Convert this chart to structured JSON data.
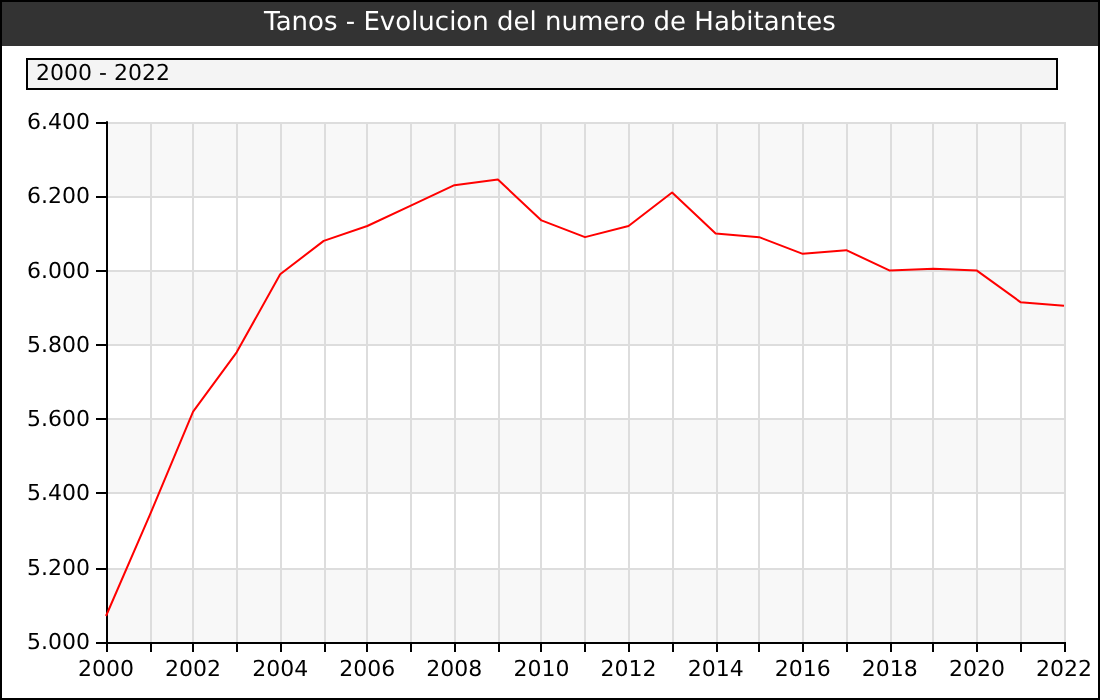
{
  "chart_data": {
    "type": "line",
    "title": "Tanos - Evolucion del numero de Habitantes",
    "subtitle": "2000 - 2022",
    "x": [
      2000,
      2001,
      2002,
      2003,
      2004,
      2005,
      2006,
      2007,
      2008,
      2009,
      2010,
      2011,
      2012,
      2013,
      2014,
      2015,
      2016,
      2017,
      2018,
      2019,
      2020,
      2021,
      2022
    ],
    "series": [
      {
        "color": "#ff0000",
        "values": [
          5070,
          5340,
          5620,
          5780,
          5990,
          6080,
          6120,
          6175,
          6230,
          6245,
          6135,
          6090,
          6120,
          6210,
          6100,
          6090,
          6045,
          6055,
          6000,
          6005,
          6000,
          5915,
          5905
        ]
      }
    ],
    "xlim": [
      2000,
      2022
    ],
    "xticks": [
      2000,
      {
        "value": 2001,
        "label": null
      },
      2002,
      {
        "value": 2003,
        "label": null
      },
      2004,
      {
        "value": 2005,
        "label": null
      },
      2006,
      {
        "value": 2007,
        "label": null
      },
      2008,
      {
        "value": 2009,
        "label": null
      },
      2010,
      {
        "value": 2011,
        "label": null
      },
      2012,
      {
        "value": 2013,
        "label": null
      },
      2014,
      {
        "value": 2015,
        "label": null
      },
      2016,
      {
        "value": 2017,
        "label": null
      },
      2018,
      {
        "value": 2019,
        "label": null
      },
      2020,
      {
        "value": 2021,
        "label": null
      },
      2022
    ],
    "ylim": [
      5000,
      6400
    ],
    "yticks": [
      {
        "value": 5000,
        "label": "5.000"
      },
      {
        "value": 5200,
        "label": "5.200"
      },
      {
        "value": 5400,
        "label": "5.400"
      },
      {
        "value": 5600,
        "label": "5.600"
      },
      {
        "value": 5800,
        "label": "5.800"
      },
      {
        "value": 6000,
        "label": "6.000"
      },
      {
        "value": 6200,
        "label": "6.200"
      },
      {
        "value": 6400,
        "label": "6.400"
      }
    ],
    "grid": true,
    "marker": "none",
    "line_style": "solid"
  }
}
